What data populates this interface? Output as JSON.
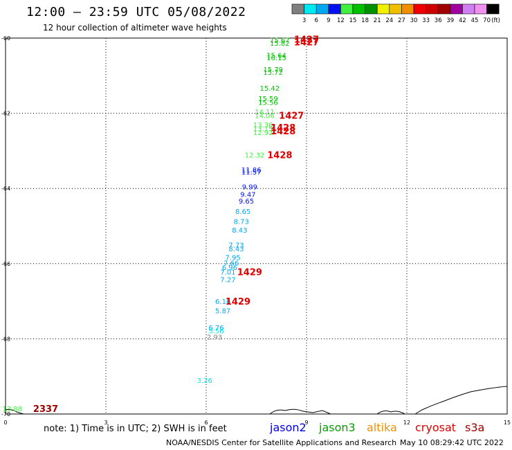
{
  "header": {
    "title": "12:00 – 23:59 UTC 05/08/2022",
    "subtitle": "12 hour collection of altimeter wave heights"
  },
  "scale": {
    "bins": [
      {
        "label": "",
        "color": "#808080"
      },
      {
        "label": "3",
        "color": "#00e8f0"
      },
      {
        "label": "6",
        "color": "#00a8f0"
      },
      {
        "label": "9",
        "color": "#0010f0"
      },
      {
        "label": "12",
        "color": "#40f040"
      },
      {
        "label": "15",
        "color": "#00c000"
      },
      {
        "label": "18",
        "color": "#009000"
      },
      {
        "label": "21",
        "color": "#f0f000"
      },
      {
        "label": "24",
        "color": "#f0c000"
      },
      {
        "label": "27",
        "color": "#f09000"
      },
      {
        "label": "30",
        "color": "#f00000"
      },
      {
        "label": "33",
        "color": "#d00000"
      },
      {
        "label": "36",
        "color": "#a00000"
      },
      {
        "label": "39",
        "color": "#a000a0"
      },
      {
        "label": "42",
        "color": "#d080f0"
      },
      {
        "label": "45",
        "color": "#f090f0"
      },
      {
        "label": "70",
        "color": "#000000"
      }
    ],
    "unit": "(ft)"
  },
  "footer": {
    "note": "note: 1) Time is in UTC; 2) SWH is in feet",
    "missions": [
      {
        "name": "jason2",
        "color": "#0000e0"
      },
      {
        "name": "jason3",
        "color": "#00a000"
      },
      {
        "name": "altika",
        "color": "#f09000"
      },
      {
        "name": "cryosat",
        "color": "#e00000"
      },
      {
        "name": "s3a",
        "color": "#a00000"
      }
    ],
    "credit": "NOAA/NESDIS Center for Satellite Applications and Research",
    "timestamp": "May 10 08:29:42 UTC 2022"
  },
  "chart_data": {
    "type": "scatter",
    "title": "12:00 – 23:59 UTC 05/08/2022",
    "subtitle": "12 hour collection of altimeter wave heights",
    "xlabel": "",
    "ylabel": "",
    "xlim": [
      0,
      15
    ],
    "ylim": [
      -70,
      -60
    ],
    "x_ticks": [
      "0",
      "3",
      "6",
      "9",
      "12",
      "15"
    ],
    "y_ticks": [
      "-60",
      "-62",
      "-64",
      "-66",
      "-68",
      "-70"
    ],
    "grid": true,
    "points": [
      {
        "x": 8.2,
        "y": -60.05,
        "label": "15.67",
        "color": "#00c000"
      },
      {
        "x": 8.2,
        "y": -60.13,
        "label": "15.82",
        "color": "#00c000"
      },
      {
        "x": 8.1,
        "y": -60.45,
        "label": "15.64",
        "color": "#00c000"
      },
      {
        "x": 8.1,
        "y": -60.52,
        "label": "16.15",
        "color": "#00c000"
      },
      {
        "x": 8.0,
        "y": -60.83,
        "label": "15.79",
        "color": "#00c000"
      },
      {
        "x": 8.0,
        "y": -60.9,
        "label": "15.72",
        "color": "#00c000"
      },
      {
        "x": 7.9,
        "y": -61.33,
        "label": "15.42",
        "color": "#00c000"
      },
      {
        "x": 7.85,
        "y": -61.6,
        "label": "15.59",
        "color": "#00c000"
      },
      {
        "x": 7.85,
        "y": -61.7,
        "label": "15.56",
        "color": "#00c000"
      },
      {
        "x": 7.75,
        "y": -61.95,
        "label": "14.11",
        "color": "#40f040"
      },
      {
        "x": 7.75,
        "y": -62.05,
        "label": "14.06",
        "color": "#40f040"
      },
      {
        "x": 7.7,
        "y": -62.3,
        "label": "13.36",
        "color": "#40f040"
      },
      {
        "x": 7.7,
        "y": -62.4,
        "label": "13.15",
        "color": "#40f040"
      },
      {
        "x": 7.7,
        "y": -62.5,
        "label": "12.92",
        "color": "#40f040"
      },
      {
        "x": 7.45,
        "y": -63.1,
        "label": "12.32",
        "color": "#40f040"
      },
      {
        "x": 7.35,
        "y": -63.5,
        "label": "11.86",
        "color": "#0010f0"
      },
      {
        "x": 7.35,
        "y": -63.55,
        "label": "11.57",
        "color": "#0010f0"
      },
      {
        "x": 7.3,
        "y": -63.95,
        "label": "9.99",
        "color": "#0010f0"
      },
      {
        "x": 7.25,
        "y": -64.15,
        "label": "9.47",
        "color": "#0010f0"
      },
      {
        "x": 7.2,
        "y": -64.33,
        "label": "9.65",
        "color": "#0010f0"
      },
      {
        "x": 7.1,
        "y": -64.6,
        "label": "8.65",
        "color": "#00a8f0"
      },
      {
        "x": 7.05,
        "y": -64.87,
        "label": "8.73",
        "color": "#00a8f0"
      },
      {
        "x": 7.0,
        "y": -65.1,
        "label": "8.43",
        "color": "#00a8f0"
      },
      {
        "x": 6.9,
        "y": -65.5,
        "label": "7.73",
        "color": "#00a8f0"
      },
      {
        "x": 6.9,
        "y": -65.6,
        "label": "8.43",
        "color": "#00a8f0"
      },
      {
        "x": 6.8,
        "y": -65.83,
        "label": "7.95",
        "color": "#00a8f0"
      },
      {
        "x": 6.75,
        "y": -65.98,
        "label": "7.66",
        "color": "#00a8f0"
      },
      {
        "x": 6.7,
        "y": -66.1,
        "label": "6.96",
        "color": "#00a8f0"
      },
      {
        "x": 6.65,
        "y": -66.22,
        "label": "7.01",
        "color": "#00a8f0"
      },
      {
        "x": 6.65,
        "y": -66.42,
        "label": "7.27",
        "color": "#00a8f0"
      },
      {
        "x": 6.5,
        "y": -67.0,
        "label": "6.16",
        "color": "#00a8f0"
      },
      {
        "x": 6.5,
        "y": -67.25,
        "label": "5.87",
        "color": "#00a8f0"
      },
      {
        "x": 6.3,
        "y": -67.7,
        "label": "6.76",
        "color": "#00a8f0"
      },
      {
        "x": 6.3,
        "y": -67.78,
        "label": "5.56",
        "color": "#00e8f0"
      },
      {
        "x": 6.25,
        "y": -67.95,
        "label": "2.93",
        "color": "#808080"
      },
      {
        "x": 5.95,
        "y": -69.1,
        "label": "3.26",
        "color": "#00e8f0"
      },
      {
        "x": 0.2,
        "y": -69.85,
        "label": "13.88",
        "color": "#40f040"
      }
    ],
    "track_labels": [
      {
        "x": 9.0,
        "y": -60.03,
        "label": "1427",
        "color": "#e00000"
      },
      {
        "x": 9.0,
        "y": -60.1,
        "label": "1427",
        "color": "#e00000"
      },
      {
        "x": 8.55,
        "y": -62.05,
        "label": "1427",
        "color": "#e00000"
      },
      {
        "x": 8.3,
        "y": -62.38,
        "label": "1428",
        "color": "#e00000"
      },
      {
        "x": 8.3,
        "y": -62.47,
        "label": "1428",
        "color": "#e00000"
      },
      {
        "x": 8.2,
        "y": -63.1,
        "label": "1428",
        "color": "#e00000"
      },
      {
        "x": 7.3,
        "y": -66.22,
        "label": "1429",
        "color": "#e00000"
      },
      {
        "x": 6.95,
        "y": -67.0,
        "label": "1429",
        "color": "#e00000"
      },
      {
        "x": 1.2,
        "y": -69.85,
        "label": "2337",
        "color": "#a00000"
      }
    ]
  }
}
